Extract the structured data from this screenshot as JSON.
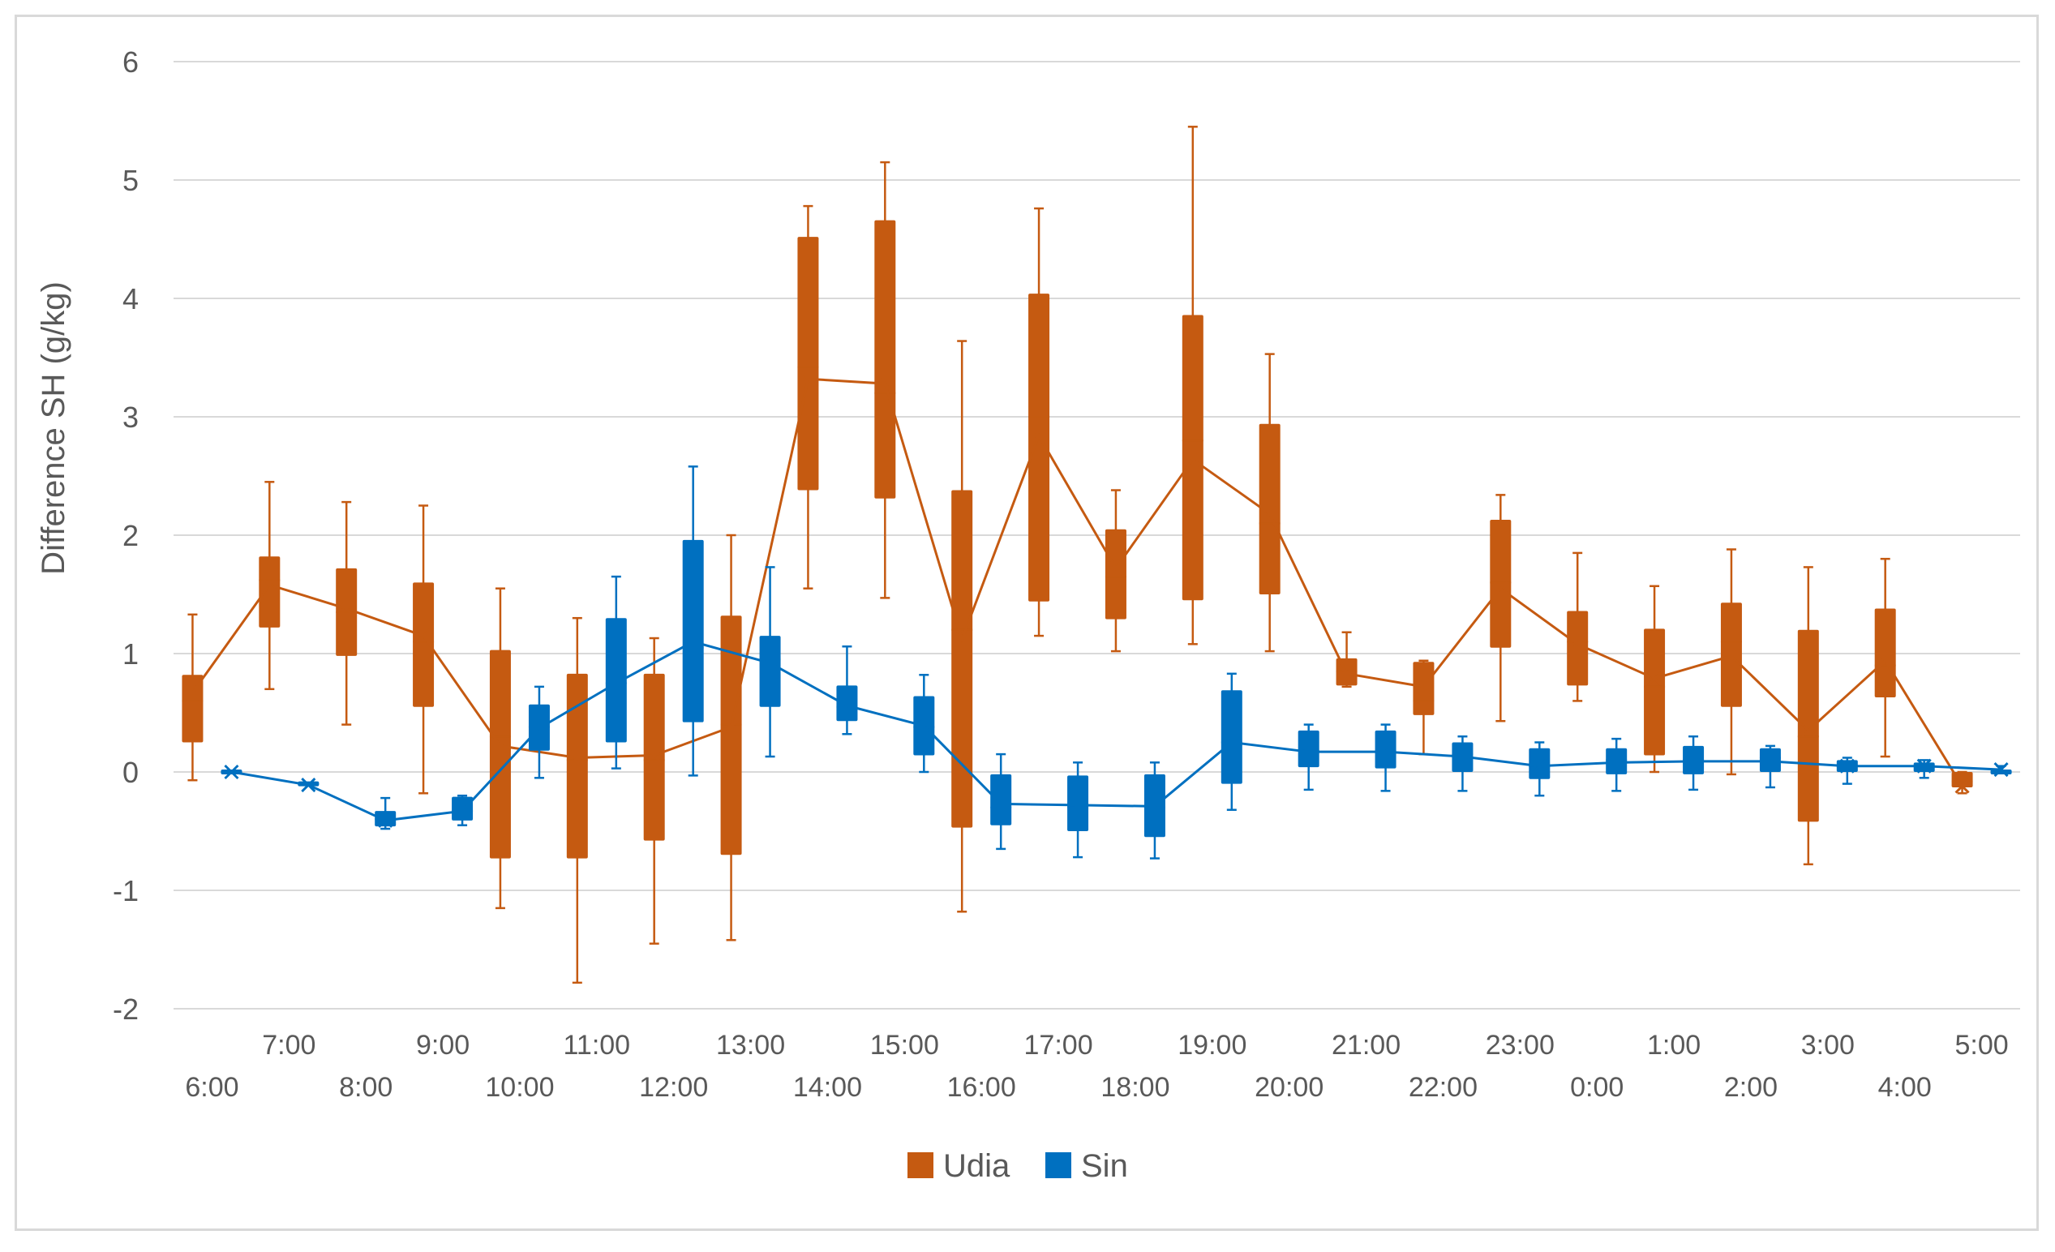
{
  "chart_data": {
    "type": "boxplot",
    "title": "",
    "xlabel": "",
    "ylabel": "Difference SH (g/kg)",
    "ylim": [
      -2,
      6
    ],
    "yticks": [
      -2,
      -1,
      0,
      1,
      2,
      3,
      4,
      5,
      6
    ],
    "grid": true,
    "legend_position": "bottom",
    "categories": [
      "6:00",
      "7:00",
      "8:00",
      "9:00",
      "10:00",
      "11:00",
      "12:00",
      "13:00",
      "14:00",
      "15:00",
      "16:00",
      "17:00",
      "18:00",
      "19:00",
      "20:00",
      "21:00",
      "22:00",
      "23:00",
      "0:00",
      "1:00",
      "2:00",
      "3:00",
      "4:00",
      "5:00"
    ],
    "series": [
      {
        "name": "Udia",
        "color": "#C55A11",
        "boxes": [
          {
            "min": -0.07,
            "q1": 0.25,
            "median": 0.6,
            "q3": 0.82,
            "max": 1.33,
            "mean": 0.67
          },
          {
            "min": 0.7,
            "q1": 1.22,
            "median": 1.62,
            "q3": 1.82,
            "max": 2.45,
            "mean": 1.58
          },
          {
            "min": 0.4,
            "q1": 0.98,
            "median": 1.35,
            "q3": 1.72,
            "max": 2.28,
            "mean": 1.38
          },
          {
            "min": -0.18,
            "q1": 0.55,
            "median": 1.1,
            "q3": 1.6,
            "max": 2.25,
            "mean": 1.15
          },
          {
            "min": -1.15,
            "q1": -0.73,
            "median": 0.3,
            "q3": 1.03,
            "max": 1.55,
            "mean": 0.22
          },
          {
            "min": -1.78,
            "q1": -0.73,
            "median": 0.1,
            "q3": 0.83,
            "max": 1.3,
            "mean": 0.12
          },
          {
            "min": -1.45,
            "q1": -0.58,
            "median": 0.1,
            "q3": 0.83,
            "max": 1.13,
            "mean": 0.14
          },
          {
            "min": -1.42,
            "q1": -0.7,
            "median": 0.4,
            "q3": 1.32,
            "max": 2.0,
            "mean": 0.38
          },
          {
            "min": 1.55,
            "q1": 2.38,
            "median": 3.42,
            "q3": 4.52,
            "max": 4.78,
            "mean": 3.32
          },
          {
            "min": 1.47,
            "q1": 2.31,
            "median": 3.2,
            "q3": 4.66,
            "max": 5.15,
            "mean": 3.28
          },
          {
            "min": -1.18,
            "q1": -0.47,
            "median": 1.2,
            "q3": 2.38,
            "max": 3.64,
            "mean": 1.12
          },
          {
            "min": 1.15,
            "q1": 1.44,
            "median": 3.0,
            "q3": 4.04,
            "max": 4.76,
            "mean": 2.84
          },
          {
            "min": 1.02,
            "q1": 1.29,
            "median": 1.65,
            "q3": 2.05,
            "max": 2.38,
            "mean": 1.72
          },
          {
            "min": 1.08,
            "q1": 1.45,
            "median": 2.8,
            "q3": 3.86,
            "max": 5.45,
            "mean": 2.64
          },
          {
            "min": 1.02,
            "q1": 1.5,
            "median": 2.1,
            "q3": 2.94,
            "max": 3.53,
            "mean": 2.18
          },
          {
            "min": 0.72,
            "q1": 0.73,
            "median": 0.85,
            "q3": 0.96,
            "max": 1.18,
            "mean": 0.83
          },
          {
            "min": 0.15,
            "q1": 0.48,
            "median": 0.6,
            "q3": 0.93,
            "max": 0.94,
            "mean": 0.72
          },
          {
            "min": 0.43,
            "q1": 1.05,
            "median": 1.6,
            "q3": 2.13,
            "max": 2.34,
            "mean": 1.55
          },
          {
            "min": 0.6,
            "q1": 0.73,
            "median": 1.1,
            "q3": 1.36,
            "max": 1.85,
            "mean": 1.08
          },
          {
            "min": 0.0,
            "q1": 0.14,
            "median": 0.72,
            "q3": 1.21,
            "max": 1.57,
            "mean": 0.79
          },
          {
            "min": -0.02,
            "q1": 0.55,
            "median": 1.1,
            "q3": 1.43,
            "max": 1.88,
            "mean": 0.98
          },
          {
            "min": -0.78,
            "q1": -0.42,
            "median": 0.3,
            "q3": 1.2,
            "max": 1.73,
            "mean": 0.35
          },
          {
            "min": 0.13,
            "q1": 0.63,
            "median": 0.9,
            "q3": 1.38,
            "max": 1.8,
            "mean": 0.94
          },
          {
            "min": -0.18,
            "q1": -0.13,
            "median": -0.08,
            "q3": 0.0,
            "max": 0.0,
            "mean": -0.12
          }
        ]
      },
      {
        "name": "Sin",
        "color": "#0070C0",
        "boxes": [
          {
            "min": 0.0,
            "q1": 0.0,
            "median": 0.0,
            "q3": 0.0,
            "max": 0.0,
            "mean": 0.0
          },
          {
            "min": -0.1,
            "q1": -0.1,
            "median": -0.1,
            "q3": -0.1,
            "max": -0.1,
            "mean": -0.11
          },
          {
            "min": -0.48,
            "q1": -0.46,
            "median": -0.4,
            "q3": -0.33,
            "max": -0.22,
            "mean": -0.41
          },
          {
            "min": -0.45,
            "q1": -0.41,
            "median": -0.33,
            "q3": -0.21,
            "max": -0.2,
            "mean": -0.33
          },
          {
            "min": -0.05,
            "q1": 0.18,
            "median": 0.38,
            "q3": 0.57,
            "max": 0.72,
            "mean": 0.37
          },
          {
            "min": 0.03,
            "q1": 0.25,
            "median": 0.75,
            "q3": 1.3,
            "max": 1.65,
            "mean": 0.75
          },
          {
            "min": -0.03,
            "q1": 0.42,
            "median": 1.05,
            "q3": 1.96,
            "max": 2.58,
            "mean": 1.1
          },
          {
            "min": 0.13,
            "q1": 0.55,
            "median": 0.95,
            "q3": 1.15,
            "max": 1.73,
            "mean": 0.92
          },
          {
            "min": 0.32,
            "q1": 0.43,
            "median": 0.55,
            "q3": 0.73,
            "max": 1.06,
            "mean": 0.56
          },
          {
            "min": 0.0,
            "q1": 0.14,
            "median": 0.38,
            "q3": 0.64,
            "max": 0.82,
            "mean": 0.39
          },
          {
            "min": -0.65,
            "q1": -0.45,
            "median": -0.3,
            "q3": -0.02,
            "max": 0.15,
            "mean": -0.27
          },
          {
            "min": -0.72,
            "q1": -0.5,
            "median": -0.3,
            "q3": -0.03,
            "max": 0.08,
            "mean": -0.28
          },
          {
            "min": -0.73,
            "q1": -0.55,
            "median": -0.3,
            "q3": -0.02,
            "max": 0.08,
            "mean": -0.29
          },
          {
            "min": -0.32,
            "q1": -0.1,
            "median": 0.25,
            "q3": 0.69,
            "max": 0.83,
            "mean": 0.25
          },
          {
            "min": -0.15,
            "q1": 0.04,
            "median": 0.18,
            "q3": 0.35,
            "max": 0.4,
            "mean": 0.17
          },
          {
            "min": -0.16,
            "q1": 0.03,
            "median": 0.18,
            "q3": 0.35,
            "max": 0.4,
            "mean": 0.17
          },
          {
            "min": -0.16,
            "q1": 0.0,
            "median": 0.15,
            "q3": 0.25,
            "max": 0.3,
            "mean": 0.13
          },
          {
            "min": -0.2,
            "q1": -0.06,
            "median": 0.05,
            "q3": 0.2,
            "max": 0.25,
            "mean": 0.05
          },
          {
            "min": -0.16,
            "q1": -0.02,
            "median": 0.1,
            "q3": 0.2,
            "max": 0.28,
            "mean": 0.08
          },
          {
            "min": -0.15,
            "q1": -0.02,
            "median": 0.1,
            "q3": 0.22,
            "max": 0.3,
            "mean": 0.09
          },
          {
            "min": -0.13,
            "q1": 0.0,
            "median": 0.12,
            "q3": 0.2,
            "max": 0.22,
            "mean": 0.09
          },
          {
            "min": -0.1,
            "q1": 0.0,
            "median": 0.05,
            "q3": 0.1,
            "max": 0.12,
            "mean": 0.05
          },
          {
            "min": -0.05,
            "q1": 0.0,
            "median": 0.05,
            "q3": 0.08,
            "max": 0.1,
            "mean": 0.05
          },
          {
            "min": 0.0,
            "q1": 0.0,
            "median": 0.0,
            "q3": 0.0,
            "max": 0.05,
            "mean": 0.02
          }
        ]
      }
    ]
  }
}
